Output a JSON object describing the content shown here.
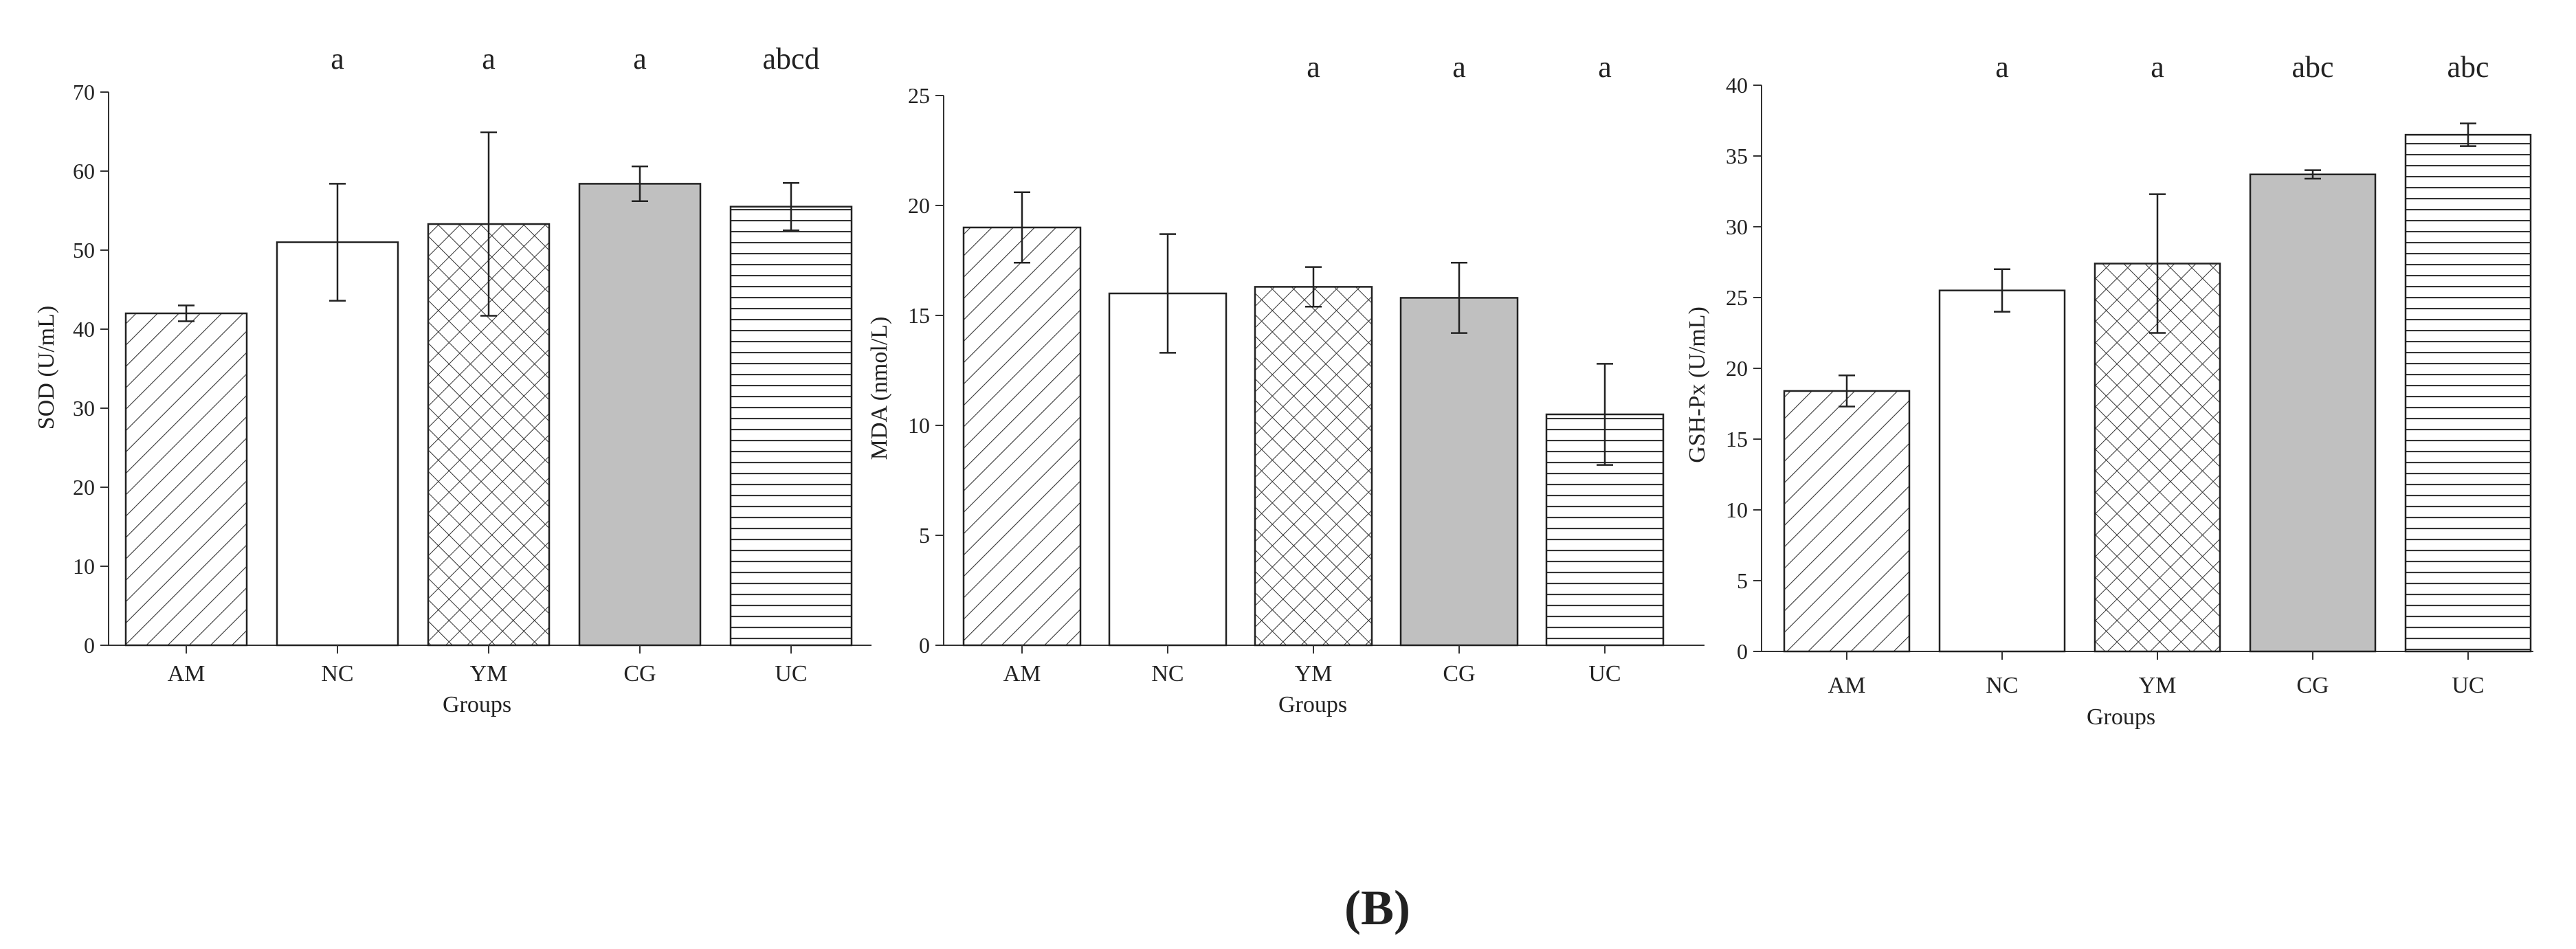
{
  "figure": {
    "panel_label_open": "(",
    "panel_label_letter": "B",
    "panel_label_close": ")"
  },
  "chart_data": [
    {
      "type": "bar",
      "title": "",
      "xlabel": "Groups",
      "ylabel": "SOD (U/mL)",
      "ylim": [
        0,
        70
      ],
      "yticks": [
        0,
        10,
        20,
        30,
        40,
        50,
        60,
        70
      ],
      "categories": [
        "AM",
        "NC",
        "YM",
        "CG",
        "UC"
      ],
      "values": [
        42.0,
        51.0,
        53.3,
        58.4,
        55.5
      ],
      "errors": [
        1.0,
        7.4,
        11.6,
        2.2,
        3.0
      ],
      "significance": [
        "",
        "a",
        "a",
        "a",
        "abcd"
      ],
      "patterns": [
        "diagonal",
        "white",
        "crosshatch",
        "gray",
        "horizontal"
      ],
      "grid": false
    },
    {
      "type": "bar",
      "title": "",
      "xlabel": "Groups",
      "ylabel": "MDA (nmol/L)",
      "ylim": [
        0,
        25
      ],
      "yticks": [
        0,
        5,
        10,
        15,
        20,
        25
      ],
      "categories": [
        "AM",
        "NC",
        "YM",
        "CG",
        "UC"
      ],
      "values": [
        19.0,
        16.0,
        16.3,
        15.8,
        10.5
      ],
      "errors": [
        1.6,
        2.7,
        0.9,
        1.6,
        2.3
      ],
      "significance": [
        "",
        "",
        "a",
        "a",
        "a"
      ],
      "patterns": [
        "diagonal",
        "white",
        "crosshatch",
        "gray",
        "horizontal"
      ],
      "grid": false
    },
    {
      "type": "bar",
      "title": "",
      "xlabel": "Groups",
      "ylabel": "GSH-Px (U/mL)",
      "ylim": [
        0,
        40
      ],
      "yticks": [
        0,
        5,
        10,
        15,
        20,
        25,
        30,
        35,
        40
      ],
      "categories": [
        "AM",
        "NC",
        "YM",
        "CG",
        "UC"
      ],
      "values": [
        18.4,
        25.5,
        27.4,
        33.7,
        36.5
      ],
      "errors": [
        1.1,
        1.5,
        4.9,
        0.3,
        0.8
      ],
      "significance": [
        "",
        "a",
        "a",
        "abc",
        "abc"
      ],
      "patterns": [
        "diagonal",
        "white",
        "crosshatch",
        "gray",
        "horizontal"
      ],
      "grid": false
    }
  ],
  "colors": {
    "axis": "#333333",
    "bar_edge": "#222222",
    "gray_fill": "#c0c0c0",
    "pattern_line": "#333333",
    "background": "#ffffff"
  }
}
